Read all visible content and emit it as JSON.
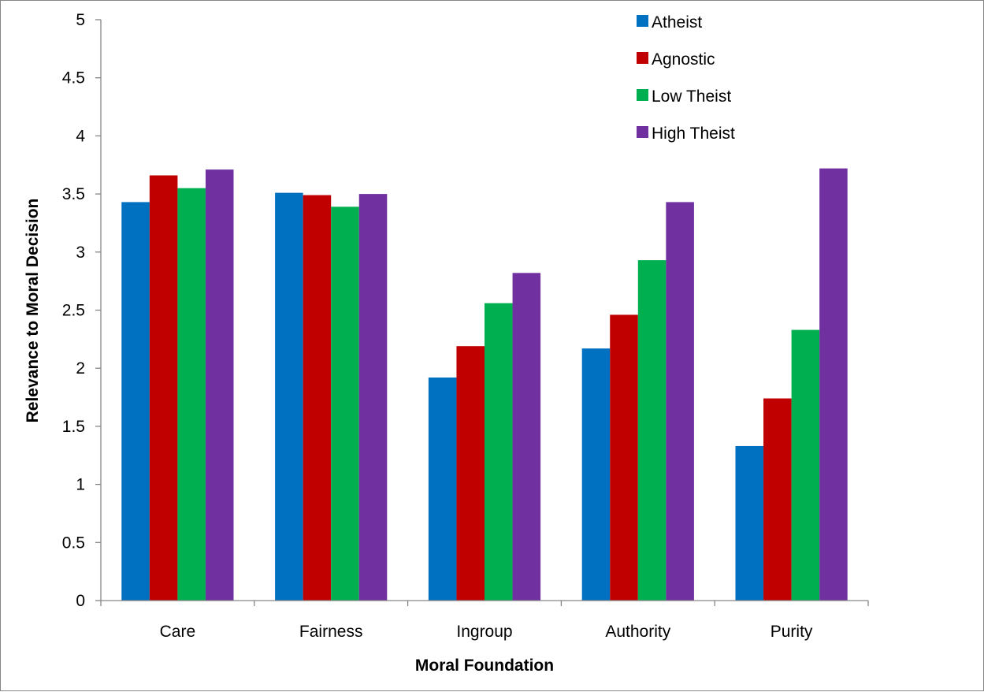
{
  "chart_data": {
    "type": "bar",
    "title": "",
    "xlabel": "Moral Foundation",
    "ylabel": "Relevance to Moral Decision",
    "ylim": [
      0,
      5
    ],
    "yticks": [
      "0",
      "0.5",
      "1",
      "1.5",
      "2",
      "2.5",
      "3",
      "3.5",
      "4",
      "4.5",
      "5"
    ],
    "grid": false,
    "legend_position": "top-right",
    "categories": [
      "Care",
      "Fairness",
      "Ingroup",
      "Authority",
      "Purity"
    ],
    "series": [
      {
        "name": "Atheist",
        "color": "#0070C0",
        "values": [
          3.43,
          3.51,
          1.92,
          2.17,
          1.33
        ]
      },
      {
        "name": "Agnostic",
        "color": "#C00000",
        "values": [
          3.66,
          3.49,
          2.19,
          2.46,
          1.74
        ]
      },
      {
        "name": "Low Theist",
        "color": "#00B050",
        "values": [
          3.55,
          3.39,
          2.56,
          2.93,
          2.33
        ]
      },
      {
        "name": "High Theist",
        "color": "#7030A0",
        "values": [
          3.71,
          3.5,
          2.82,
          3.43,
          3.72
        ]
      }
    ]
  }
}
